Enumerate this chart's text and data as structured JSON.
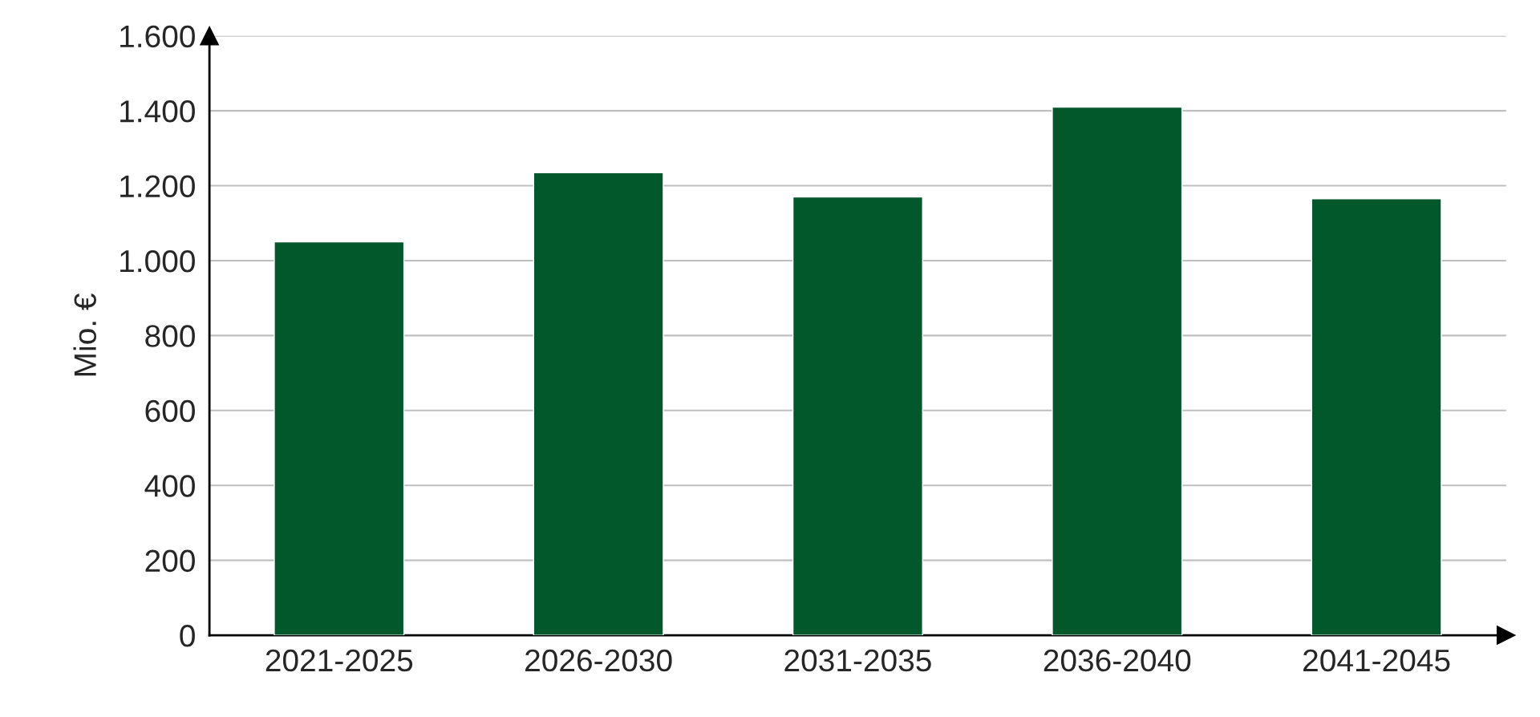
{
  "chart_data": {
    "type": "bar",
    "ylabel": "Mio. €",
    "categories": [
      "2021-2025",
      "2026-2030",
      "2031-2035",
      "2036-2040",
      "2041-2045"
    ],
    "values": [
      1050,
      1235,
      1170,
      1410,
      1165
    ],
    "color": "#02572b",
    "ylim": [
      0,
      1600
    ],
    "yticks": [
      0,
      200,
      400,
      600,
      800,
      {
        "value": 1000,
        "label": "1.000"
      },
      {
        "value": 1200,
        "label": "1.200"
      },
      {
        "value": 1400,
        "label": "1.400"
      },
      {
        "value": 1600,
        "label": "1.600"
      }
    ],
    "grid": "y"
  }
}
